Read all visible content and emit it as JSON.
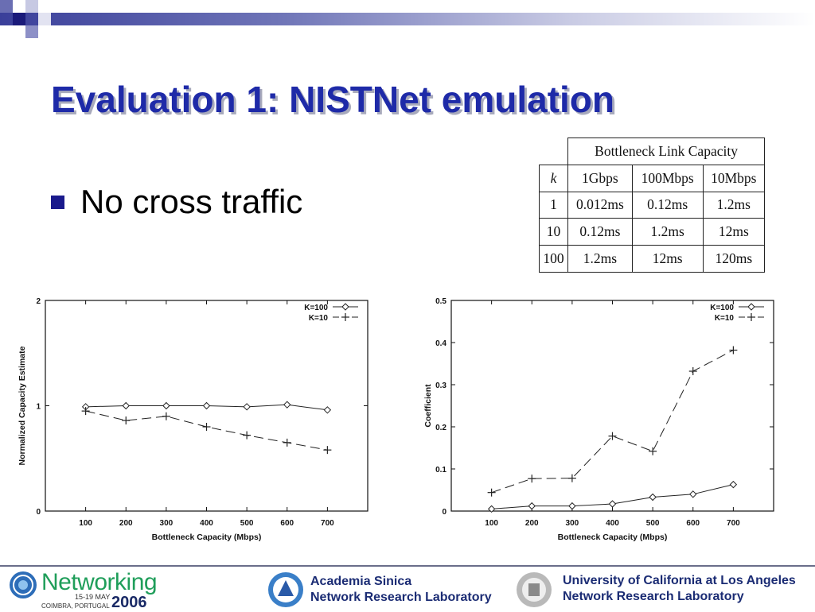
{
  "slide": {
    "title": "Evaluation 1: NISTNet emulation",
    "bullet": "No cross traffic",
    "theme": {
      "title_color": "#1e2aa8",
      "title_shadow": "#a8aabc",
      "bullet_color": "#1a1a8c",
      "bar_color": "#3a3f9a"
    }
  },
  "table": {
    "group_header": "Bottleneck Link Capacity",
    "k_label": "k",
    "columns": [
      "1Gbps",
      "100Mbps",
      "10Mbps"
    ],
    "rows": [
      {
        "k": "1",
        "cells": [
          "0.012ms",
          "0.12ms",
          "1.2ms"
        ]
      },
      {
        "k": "10",
        "cells": [
          "0.12ms",
          "1.2ms",
          "12ms"
        ]
      },
      {
        "k": "100",
        "cells": [
          "1.2ms",
          "12ms",
          "120ms"
        ]
      }
    ]
  },
  "chart_data": [
    {
      "type": "line",
      "xlabel": "Bottleneck Capacity (Mbps)",
      "ylabel": "Normalized Capacity Estimate",
      "x": [
        100,
        200,
        300,
        400,
        500,
        600,
        700
      ],
      "xticks": [
        "100",
        "200",
        "300",
        "400",
        "500",
        "600",
        "700"
      ],
      "xlim": [
        0,
        800
      ],
      "ylim": [
        0,
        2
      ],
      "yticks": [
        "0",
        "1",
        "2"
      ],
      "legend": "top-right",
      "series": [
        {
          "name": "K=100",
          "marker": "diamond",
          "dash": "solid",
          "values": [
            0.99,
            1.0,
            1.0,
            1.0,
            0.99,
            1.01,
            0.96
          ]
        },
        {
          "name": "K=10",
          "marker": "plus",
          "dash": "dashed",
          "values": [
            0.95,
            0.86,
            0.9,
            0.8,
            0.72,
            0.65,
            0.58
          ]
        }
      ]
    },
    {
      "type": "line",
      "xlabel": "Bottleneck Capacity (Mbps)",
      "ylabel": "Coefficient",
      "x": [
        100,
        200,
        300,
        400,
        500,
        600,
        700
      ],
      "xticks": [
        "100",
        "200",
        "300",
        "400",
        "500",
        "600",
        "700"
      ],
      "xlim": [
        0,
        800
      ],
      "ylim": [
        0,
        0.5
      ],
      "yticks": [
        "0",
        "0.1",
        "0.2",
        "0.3",
        "0.4",
        "0.5"
      ],
      "legend": "top-right",
      "series": [
        {
          "name": "K=100",
          "marker": "diamond",
          "dash": "solid",
          "values": [
            0.005,
            0.012,
            0.012,
            0.017,
            0.033,
            0.04,
            0.063
          ]
        },
        {
          "name": "K=10",
          "marker": "plus",
          "dash": "dashed",
          "values": [
            0.044,
            0.077,
            0.078,
            0.178,
            0.142,
            0.332,
            0.382
          ]
        }
      ]
    }
  ],
  "footer": {
    "conf_name": "Networking",
    "conf_dates": "15-19 MAY",
    "conf_place": "COIMBRA, PORTUGAL",
    "conf_year": "2006",
    "sinica_line1": "Academia Sinica",
    "sinica_line2": "Network Research Laboratory",
    "ucla_line1": "University of California at Los Angeles",
    "ucla_line2": "Network Research Laboratory"
  }
}
